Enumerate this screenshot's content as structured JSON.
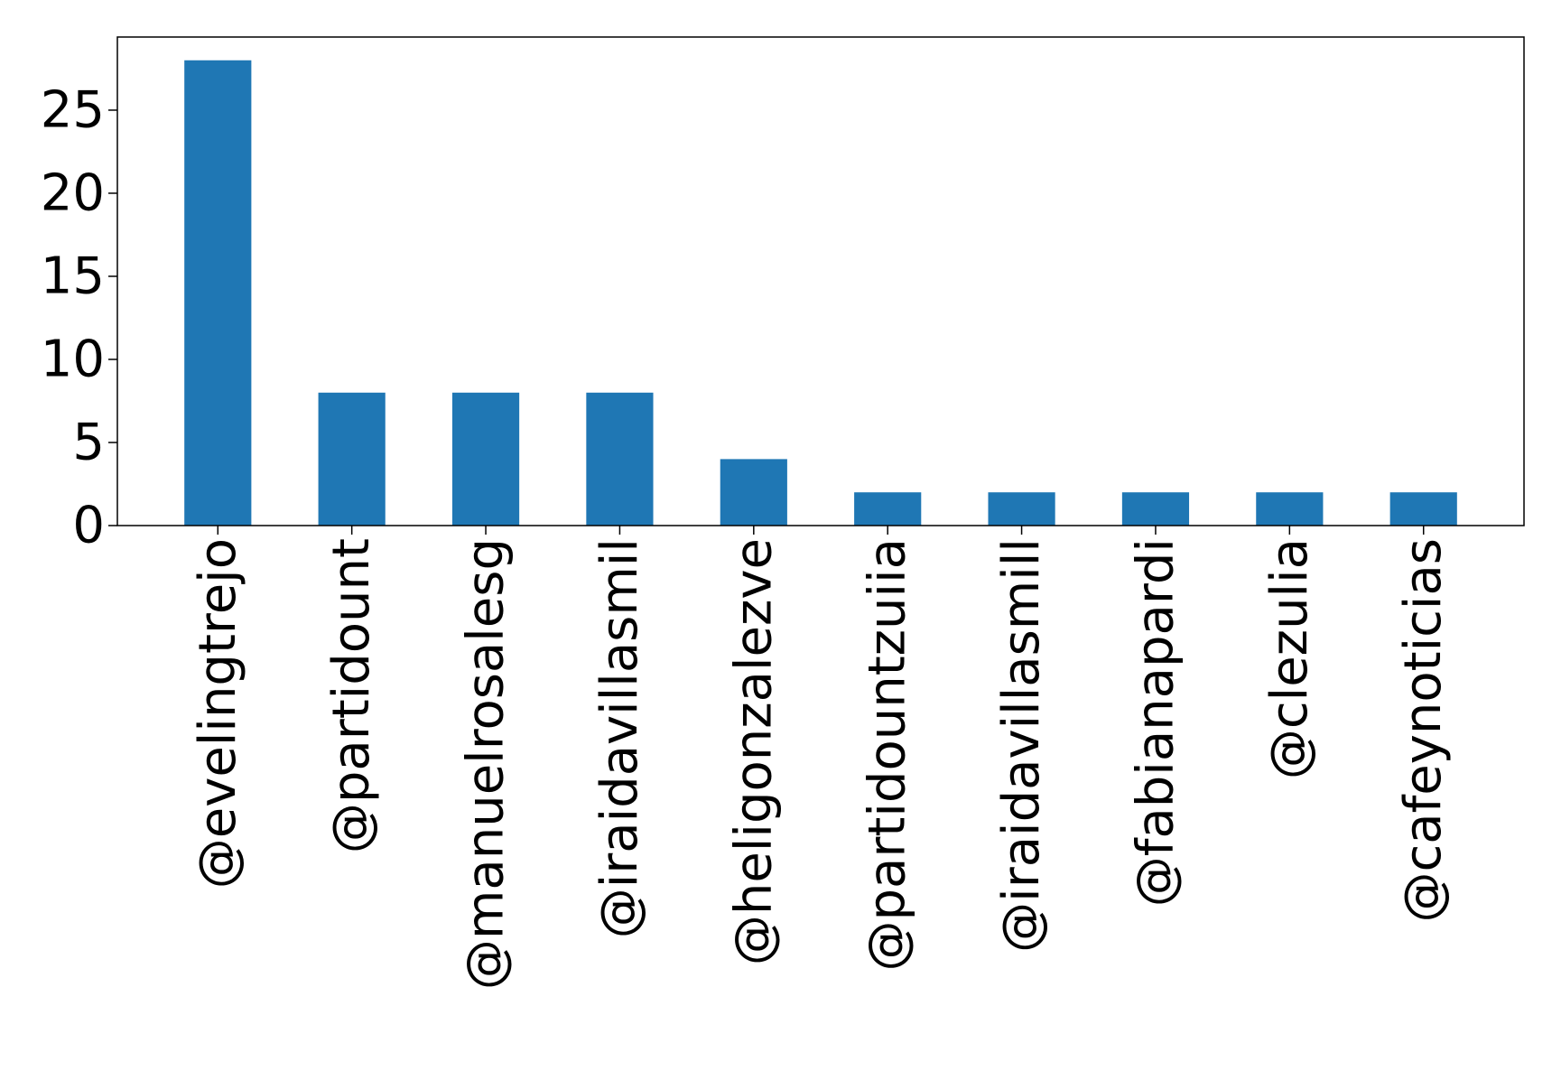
{
  "chart_data": {
    "type": "bar",
    "categories": [
      "@evelingtrejo",
      "@partidount",
      "@manuelrosalesg",
      "@iraidavillasmil",
      "@heligonzalezve",
      "@partidountzuiia",
      "@iraidavillasmill",
      "@fabianapardi",
      "@clezulia",
      "@cafeynoticias"
    ],
    "values": [
      28,
      8,
      8,
      8,
      4,
      2,
      2,
      2,
      2,
      2
    ],
    "yticks": [
      0,
      5,
      10,
      15,
      20,
      25
    ],
    "ylim": [
      0,
      29.4
    ],
    "title": "",
    "xlabel": "",
    "ylabel": "",
    "grid": false,
    "bar_color": "#1f77b4"
  }
}
